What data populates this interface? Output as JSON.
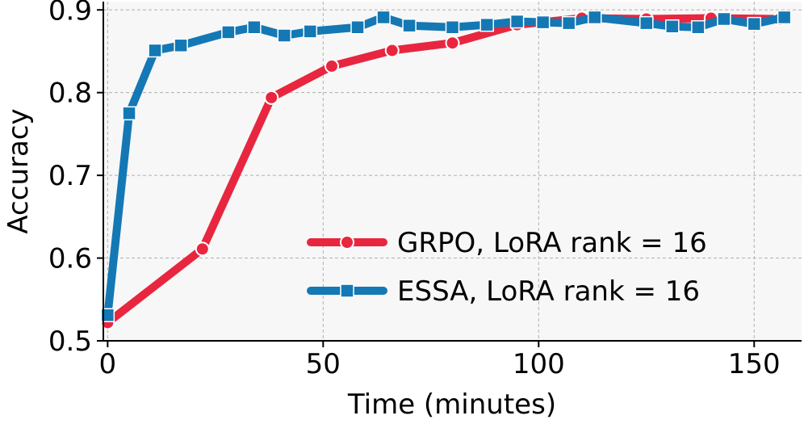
{
  "chart_data": {
    "type": "line",
    "xlabel": "Time (minutes)",
    "ylabel": "Accuracy",
    "xlim": [
      -1,
      161
    ],
    "ylim": [
      0.5,
      0.91
    ],
    "xticks": [
      0,
      50,
      100,
      150
    ],
    "yticks": [
      0.5,
      0.6,
      0.7,
      0.8,
      0.9
    ],
    "xtick_labels": [
      "0",
      "50",
      "100",
      "150"
    ],
    "ytick_labels": [
      "0.5",
      "0.6",
      "0.7",
      "0.8",
      "0.9"
    ],
    "grid": true,
    "legend_position": "lower-right",
    "series": [
      {
        "name": "GRPO, LoRA rank = 16",
        "color": "#e8263f",
        "marker": "circle",
        "x": [
          0,
          22,
          38,
          52,
          66,
          80,
          95,
          110,
          125,
          140,
          156
        ],
        "y": [
          0.522,
          0.611,
          0.794,
          0.832,
          0.851,
          0.86,
          0.882,
          0.89,
          0.889,
          0.89,
          0.889
        ]
      },
      {
        "name": "ESSA, LoRA rank = 16",
        "color": "#1478b4",
        "marker": "square",
        "x": [
          0,
          5,
          11,
          17,
          28,
          34,
          41,
          47,
          58,
          64,
          70,
          80,
          88,
          95,
          101,
          107,
          113,
          125,
          131,
          137,
          143,
          150,
          157
        ],
        "y": [
          0.531,
          0.775,
          0.851,
          0.857,
          0.873,
          0.879,
          0.869,
          0.874,
          0.879,
          0.891,
          0.881,
          0.879,
          0.882,
          0.886,
          0.885,
          0.884,
          0.891,
          0.884,
          0.88,
          0.879,
          0.889,
          0.883,
          0.891
        ]
      }
    ]
  }
}
